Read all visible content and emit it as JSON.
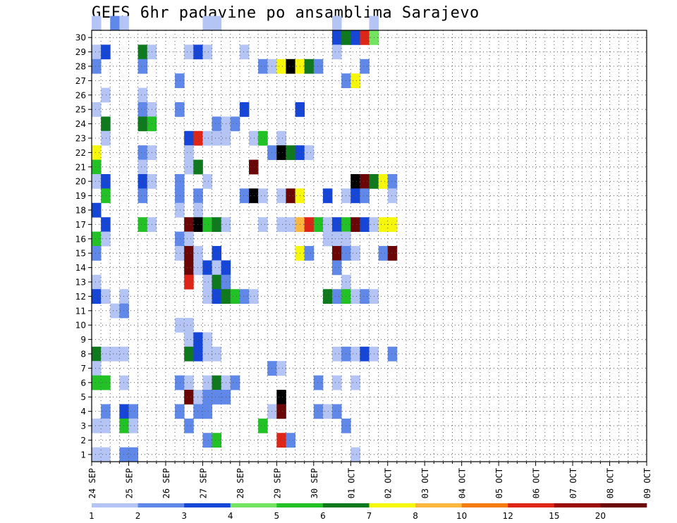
{
  "chart_data": {
    "type": "heatmap",
    "title": "GEFS 6hr padavine po ansamblima Sarajevo",
    "x_ticks": [
      "24 SEP",
      "25 SEP",
      "26 SEP",
      "27 SEP",
      "28 SEP",
      "29 SEP",
      "30 SEP",
      "01 OCT",
      "02 OCT",
      "03 OCT",
      "04 OCT",
      "05 OCT",
      "06 OCT",
      "07 OCT",
      "08 OCT",
      "09 OCT"
    ],
    "x_steps_per_day": 4,
    "y_ticks": [
      1,
      2,
      3,
      4,
      5,
      6,
      7,
      8,
      9,
      10,
      11,
      12,
      13,
      14,
      15,
      16,
      17,
      18,
      19,
      20,
      21,
      22,
      23,
      24,
      25,
      26,
      27,
      28,
      29,
      30
    ],
    "ylim": [
      0,
      30
    ],
    "colorbar": {
      "labels": [
        "1",
        "2",
        "3",
        "4",
        "5",
        "6",
        "7",
        "8",
        "10",
        "12",
        "15",
        "20"
      ],
      "colors": [
        "#b4c5f5",
        "#5f88e8",
        "#1646d8",
        "#72e462",
        "#22c227",
        "#0e7a1d",
        "#f7f70c",
        "#fbb640",
        "#f47c12",
        "#dd2518",
        "#9c0c0a",
        "#6a0606"
      ]
    },
    "cells": [
      [
        30,
        0,
        1
      ],
      [
        30,
        2,
        2
      ],
      [
        30,
        3,
        1
      ],
      [
        30,
        12,
        1
      ],
      [
        30,
        13,
        1
      ],
      [
        30,
        26,
        1
      ],
      [
        30,
        30,
        1
      ],
      [
        29,
        26,
        3
      ],
      [
        29,
        27,
        6
      ],
      [
        29,
        28,
        3
      ],
      [
        29,
        29,
        10
      ],
      [
        29,
        30,
        4
      ],
      [
        28,
        0,
        1
      ],
      [
        28,
        1,
        3
      ],
      [
        28,
        5,
        6
      ],
      [
        28,
        6,
        1
      ],
      [
        28,
        10,
        1
      ],
      [
        28,
        11,
        3
      ],
      [
        28,
        12,
        1
      ],
      [
        28,
        16,
        1
      ],
      [
        28,
        26,
        1
      ],
      [
        27,
        0,
        2
      ],
      [
        27,
        5,
        2
      ],
      [
        27,
        18,
        2
      ],
      [
        27,
        19,
        1
      ],
      [
        27,
        20,
        7
      ],
      [
        27,
        21,
        19
      ],
      [
        27,
        22,
        7
      ],
      [
        27,
        23,
        6
      ],
      [
        27,
        24,
        2
      ],
      [
        27,
        29,
        2
      ],
      [
        26,
        9,
        2
      ],
      [
        26,
        27,
        2
      ],
      [
        26,
        28,
        7
      ],
      [
        25,
        1,
        1
      ],
      [
        25,
        5,
        1
      ],
      [
        24,
        0,
        1
      ],
      [
        24,
        5,
        2
      ],
      [
        24,
        6,
        1
      ],
      [
        24,
        9,
        2
      ],
      [
        24,
        16,
        3
      ],
      [
        24,
        22,
        3
      ],
      [
        23,
        1,
        6
      ],
      [
        23,
        5,
        6
      ],
      [
        23,
        6,
        5
      ],
      [
        23,
        13,
        2
      ],
      [
        23,
        14,
        1
      ],
      [
        23,
        15,
        2
      ],
      [
        22,
        1,
        1
      ],
      [
        22,
        10,
        3
      ],
      [
        22,
        11,
        10
      ],
      [
        22,
        12,
        1
      ],
      [
        22,
        13,
        1
      ],
      [
        22,
        14,
        1
      ],
      [
        22,
        17,
        1
      ],
      [
        22,
        18,
        5
      ],
      [
        22,
        20,
        1
      ],
      [
        21,
        0,
        7
      ],
      [
        21,
        5,
        2
      ],
      [
        21,
        6,
        1
      ],
      [
        21,
        10,
        1
      ],
      [
        21,
        19,
        2
      ],
      [
        21,
        20,
        15
      ],
      [
        21,
        21,
        6
      ],
      [
        21,
        22,
        3
      ],
      [
        21,
        23,
        1
      ],
      [
        20,
        0,
        5
      ],
      [
        20,
        5,
        1
      ],
      [
        20,
        10,
        1
      ],
      [
        20,
        11,
        6
      ],
      [
        20,
        17,
        12
      ],
      [
        19,
        0,
        1
      ],
      [
        19,
        1,
        3
      ],
      [
        19,
        5,
        3
      ],
      [
        19,
        6,
        1
      ],
      [
        19,
        9,
        2
      ],
      [
        19,
        12,
        1
      ],
      [
        19,
        28,
        20
      ],
      [
        19,
        29,
        12
      ],
      [
        19,
        30,
        6
      ],
      [
        19,
        31,
        7
      ],
      [
        19,
        32,
        2
      ],
      [
        18,
        1,
        5
      ],
      [
        18,
        5,
        2
      ],
      [
        18,
        9,
        2
      ],
      [
        18,
        11,
        2
      ],
      [
        18,
        16,
        2
      ],
      [
        18,
        17,
        15
      ],
      [
        18,
        18,
        1
      ],
      [
        18,
        20,
        1
      ],
      [
        18,
        21,
        12
      ],
      [
        18,
        22,
        7
      ],
      [
        18,
        25,
        3
      ],
      [
        18,
        27,
        1
      ],
      [
        18,
        28,
        3
      ],
      [
        18,
        29,
        2
      ],
      [
        18,
        32,
        1
      ],
      [
        17,
        0,
        3
      ],
      [
        17,
        9,
        1
      ],
      [
        17,
        11,
        1
      ],
      [
        16,
        1,
        3
      ],
      [
        16,
        5,
        5
      ],
      [
        16,
        6,
        1
      ],
      [
        16,
        10,
        12
      ],
      [
        16,
        11,
        20
      ],
      [
        16,
        12,
        5
      ],
      [
        16,
        13,
        6
      ],
      [
        16,
        14,
        1
      ],
      [
        16,
        18,
        1
      ],
      [
        16,
        20,
        1
      ],
      [
        16,
        21,
        1
      ],
      [
        16,
        22,
        8
      ],
      [
        16,
        23,
        10
      ],
      [
        16,
        24,
        5
      ],
      [
        16,
        25,
        1
      ],
      [
        16,
        26,
        3
      ],
      [
        16,
        27,
        5
      ],
      [
        16,
        28,
        12
      ],
      [
        16,
        29,
        3
      ],
      [
        16,
        30,
        1
      ],
      [
        16,
        31,
        7
      ],
      [
        16,
        32,
        7
      ],
      [
        15,
        0,
        5
      ],
      [
        15,
        1,
        1
      ],
      [
        15,
        9,
        2
      ],
      [
        15,
        10,
        1
      ],
      [
        15,
        25,
        1
      ],
      [
        15,
        26,
        1
      ],
      [
        15,
        27,
        1
      ],
      [
        14,
        0,
        2
      ],
      [
        14,
        9,
        1
      ],
      [
        14,
        10,
        12
      ],
      [
        14,
        11,
        1
      ],
      [
        14,
        13,
        3
      ],
      [
        14,
        22,
        7
      ],
      [
        14,
        23,
        2
      ],
      [
        14,
        26,
        12
      ],
      [
        14,
        27,
        2
      ],
      [
        14,
        28,
        1
      ],
      [
        14,
        31,
        2
      ],
      [
        14,
        32,
        12
      ],
      [
        13,
        10,
        12
      ],
      [
        13,
        11,
        1
      ],
      [
        13,
        12,
        3
      ],
      [
        13,
        13,
        1
      ],
      [
        13,
        14,
        3
      ],
      [
        13,
        26,
        2
      ],
      [
        12,
        0,
        1
      ],
      [
        12,
        10,
        10
      ],
      [
        12,
        12,
        1
      ],
      [
        12,
        13,
        6
      ],
      [
        12,
        14,
        2
      ],
      [
        12,
        27,
        1
      ],
      [
        11,
        0,
        3
      ],
      [
        11,
        1,
        1
      ],
      [
        11,
        3,
        1
      ],
      [
        11,
        12,
        1
      ],
      [
        11,
        13,
        3
      ],
      [
        11,
        14,
        6
      ],
      [
        11,
        15,
        5
      ],
      [
        11,
        16,
        2
      ],
      [
        11,
        17,
        1
      ],
      [
        11,
        25,
        6
      ],
      [
        11,
        26,
        2
      ],
      [
        11,
        27,
        5
      ],
      [
        11,
        28,
        1
      ],
      [
        11,
        29,
        2
      ],
      [
        11,
        30,
        1
      ],
      [
        10,
        2,
        1
      ],
      [
        10,
        3,
        2
      ],
      [
        9,
        9,
        1
      ],
      [
        9,
        10,
        1
      ],
      [
        8,
        10,
        1
      ],
      [
        8,
        11,
        3
      ],
      [
        8,
        12,
        1
      ],
      [
        7,
        0,
        6
      ],
      [
        7,
        1,
        1
      ],
      [
        7,
        2,
        1
      ],
      [
        7,
        3,
        1
      ],
      [
        7,
        10,
        6
      ],
      [
        7,
        11,
        3
      ],
      [
        7,
        12,
        1
      ],
      [
        7,
        13,
        1
      ],
      [
        7,
        26,
        1
      ],
      [
        7,
        27,
        2
      ],
      [
        7,
        28,
        1
      ],
      [
        7,
        29,
        3
      ],
      [
        7,
        30,
        1
      ],
      [
        7,
        32,
        2
      ],
      [
        6,
        0,
        1
      ],
      [
        6,
        19,
        2
      ],
      [
        6,
        20,
        1
      ],
      [
        5,
        0,
        5
      ],
      [
        5,
        1,
        5
      ],
      [
        5,
        3,
        1
      ],
      [
        5,
        9,
        2
      ],
      [
        5,
        10,
        1
      ],
      [
        5,
        12,
        1
      ],
      [
        5,
        13,
        6
      ],
      [
        5,
        14,
        1
      ],
      [
        5,
        15,
        2
      ],
      [
        5,
        24,
        2
      ],
      [
        5,
        26,
        1
      ],
      [
        5,
        28,
        1
      ],
      [
        4,
        10,
        12
      ],
      [
        4,
        11,
        1
      ],
      [
        4,
        12,
        2
      ],
      [
        4,
        13,
        2
      ],
      [
        4,
        14,
        2
      ],
      [
        4,
        20,
        15
      ],
      [
        3,
        1,
        2
      ],
      [
        3,
        3,
        3
      ],
      [
        3,
        4,
        2
      ],
      [
        3,
        9,
        2
      ],
      [
        3,
        11,
        2
      ],
      [
        3,
        12,
        2
      ],
      [
        3,
        19,
        1
      ],
      [
        3,
        20,
        12
      ],
      [
        3,
        24,
        2
      ],
      [
        3,
        25,
        1
      ],
      [
        3,
        26,
        2
      ],
      [
        2,
        0,
        1
      ],
      [
        2,
        1,
        1
      ],
      [
        2,
        3,
        5
      ],
      [
        2,
        4,
        1
      ],
      [
        2,
        10,
        2
      ],
      [
        2,
        18,
        5
      ],
      [
        2,
        27,
        2
      ],
      [
        1,
        12,
        2
      ],
      [
        1,
        13,
        5
      ],
      [
        1,
        20,
        10
      ],
      [
        1,
        21,
        2
      ],
      [
        0,
        0,
        1
      ],
      [
        0,
        1,
        1
      ],
      [
        0,
        3,
        2
      ],
      [
        0,
        4,
        2
      ],
      [
        0,
        28,
        1
      ]
    ]
  }
}
